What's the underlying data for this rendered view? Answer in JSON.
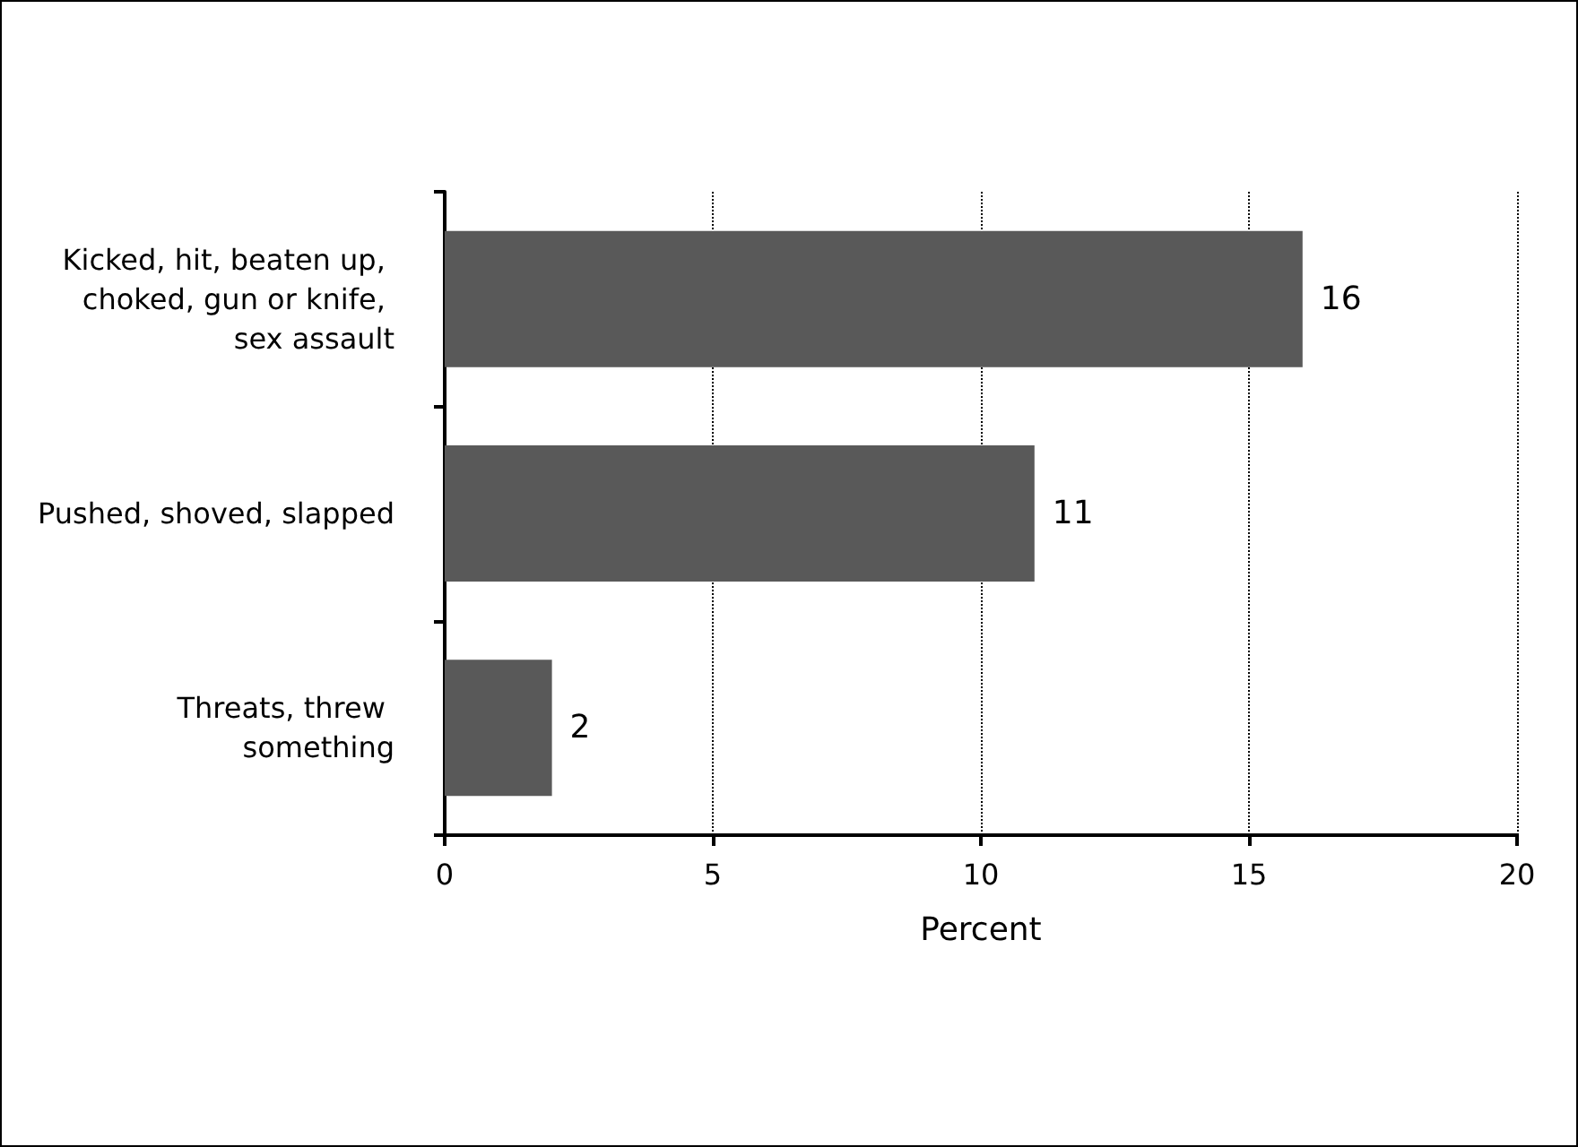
{
  "chart_data": {
    "type": "bar",
    "orientation": "horizontal",
    "categories": [
      "Kicked, hit, beaten up, choked, gun or knife, sex assault",
      "Pushed, shoved, slapped",
      "Threats, threw something"
    ],
    "values": [
      16,
      11,
      2
    ],
    "color": "#595959",
    "xlabel": "Percent",
    "xlim": [
      0,
      20
    ],
    "xticks": [
      0,
      5,
      10,
      15,
      20
    ],
    "grid": "x",
    "data_labels": true
  }
}
